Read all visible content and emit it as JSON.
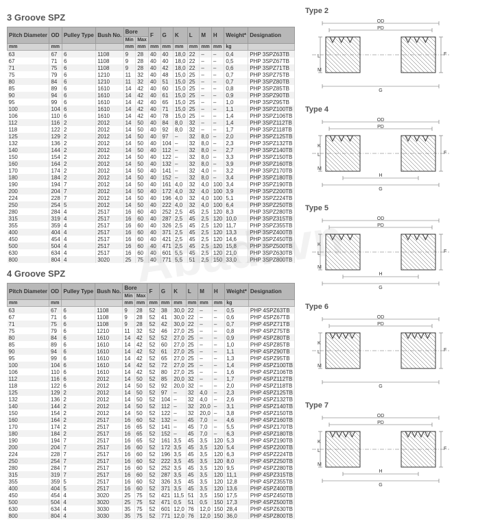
{
  "watermark": "Abadi.vn",
  "tables": [
    {
      "title": "3 Groove SPZ",
      "columns": [
        "Pitch Diameter",
        "OD",
        "Pulley Type",
        "Bush No.",
        "Bore Min",
        "Bore Max",
        "F",
        "G",
        "K",
        "L",
        "M",
        "H",
        "Weight*",
        "Designation"
      ],
      "units": [
        "mm",
        "mm",
        "",
        "",
        "mm",
        "mm",
        "mm",
        "mm",
        "mm",
        "mm",
        "mm",
        "mm",
        "kg",
        ""
      ],
      "rows": [
        [
          "63",
          "67",
          "6",
          "1108",
          "9",
          "28",
          "40",
          "40",
          "18,0",
          "22",
          "–",
          "–",
          "0,4",
          "PHP 3SPZ63TB"
        ],
        [
          "67",
          "71",
          "6",
          "1108",
          "9",
          "28",
          "40",
          "40",
          "18,0",
          "22",
          "–",
          "–",
          "0,5",
          "PHP 3SPZ67TB"
        ],
        [
          "71",
          "75",
          "6",
          "1108",
          "9",
          "28",
          "40",
          "42",
          "18,0",
          "22",
          "–",
          "–",
          "0,6",
          "PHP 3SPZ71TB"
        ],
        [
          "75",
          "79",
          "6",
          "1210",
          "11",
          "32",
          "40",
          "48",
          "15,0",
          "25",
          "–",
          "–",
          "0,7",
          "PHP 3SPZ75TB"
        ],
        [
          "80",
          "84",
          "6",
          "1210",
          "11",
          "32",
          "40",
          "51",
          "15,0",
          "25",
          "–",
          "–",
          "0,7",
          "PHP 3SPZ80TB"
        ],
        [
          "85",
          "89",
          "6",
          "1610",
          "14",
          "42",
          "40",
          "60",
          "15,0",
          "25",
          "–",
          "–",
          "0,8",
          "PHP 3SPZ85TB"
        ],
        [
          "90",
          "94",
          "6",
          "1610",
          "14",
          "42",
          "40",
          "61",
          "15,0",
          "25",
          "–",
          "–",
          "0,9",
          "PHP 3SPZ90TB"
        ],
        [
          "95",
          "99",
          "6",
          "1610",
          "14",
          "42",
          "40",
          "65",
          "15,0",
          "25",
          "–",
          "–",
          "1,0",
          "PHP 3SPZ95TB"
        ],
        [
          "100",
          "104",
          "6",
          "1610",
          "14",
          "42",
          "40",
          "71",
          "15,0",
          "25",
          "–",
          "–",
          "1,1",
          "PHP 3SPZ100TB"
        ],
        [
          "106",
          "110",
          "6",
          "1610",
          "14",
          "42",
          "40",
          "78",
          "15,0",
          "25",
          "–",
          "–",
          "1,4",
          "PHP 3SPZ106TB"
        ],
        [
          "112",
          "116",
          "2",
          "2012",
          "14",
          "50",
          "40",
          "84",
          "8,0",
          "32",
          "–",
          "–",
          "1,4",
          "PHP 3SPZ112TB"
        ],
        [
          "118",
          "122",
          "2",
          "2012",
          "14",
          "50",
          "40",
          "92",
          "8,0",
          "32",
          "–",
          "–",
          "1,7",
          "PHP 3SPZ118TB"
        ],
        [
          "125",
          "129",
          "2",
          "2012",
          "14",
          "50",
          "40",
          "97",
          "–",
          "32",
          "8,0",
          "–",
          "2,0",
          "PHP 3SPZ125TB"
        ],
        [
          "132",
          "136",
          "2",
          "2012",
          "14",
          "50",
          "40",
          "104",
          "–",
          "32",
          "8,0",
          "–",
          "2,3",
          "PHP 3SPZ132TB"
        ],
        [
          "140",
          "144",
          "2",
          "2012",
          "14",
          "50",
          "40",
          "112",
          "–",
          "32",
          "8,0",
          "–",
          "2,7",
          "PHP 3SPZ140TB"
        ],
        [
          "150",
          "154",
          "2",
          "2012",
          "14",
          "50",
          "40",
          "122",
          "–",
          "32",
          "8,0",
          "–",
          "3,3",
          "PHP 3SPZ150TB"
        ],
        [
          "160",
          "164",
          "2",
          "2012",
          "14",
          "50",
          "40",
          "132",
          "–",
          "32",
          "8,0",
          "–",
          "3,9",
          "PHP 3SPZ160TB"
        ],
        [
          "170",
          "174",
          "2",
          "2012",
          "14",
          "50",
          "40",
          "141",
          "–",
          "32",
          "4,0",
          "–",
          "3,2",
          "PHP 3SPZ170TB"
        ],
        [
          "180",
          "184",
          "2",
          "2012",
          "14",
          "50",
          "40",
          "152",
          "–",
          "32",
          "8,0",
          "–",
          "3,4",
          "PHP 3SPZ180TB"
        ],
        [
          "190",
          "194",
          "7",
          "2012",
          "14",
          "50",
          "40",
          "161",
          "4,0",
          "32",
          "4,0",
          "100",
          "3,4",
          "PHP 3SPZ190TB"
        ],
        [
          "200",
          "204",
          "7",
          "2012",
          "14",
          "50",
          "40",
          "172",
          "4,0",
          "32",
          "4,0",
          "100",
          "3,9",
          "PHP 3SPZ200TB"
        ],
        [
          "224",
          "228",
          "7",
          "2012",
          "14",
          "50",
          "40",
          "196",
          "4,0",
          "32",
          "4,0",
          "100",
          "5,1",
          "PHP 3SPZ224TB"
        ],
        [
          "250",
          "254",
          "5",
          "2012",
          "14",
          "50",
          "40",
          "222",
          "4,0",
          "32",
          "4,0",
          "100",
          "6,4",
          "PHP 3SPZ250TB"
        ],
        [
          "280",
          "284",
          "4",
          "2517",
          "16",
          "60",
          "40",
          "252",
          "2,5",
          "45",
          "2,5",
          "120",
          "8,3",
          "PHP 3SPZ280TB"
        ],
        [
          "315",
          "319",
          "4",
          "2517",
          "16",
          "60",
          "40",
          "287",
          "2,5",
          "45",
          "2,5",
          "120",
          "10,0",
          "PHP 3SPZ315TB"
        ],
        [
          "355",
          "359",
          "4",
          "2517",
          "16",
          "60",
          "40",
          "326",
          "2,5",
          "45",
          "2,5",
          "120",
          "11,7",
          "PHP 3SPZ355TB"
        ],
        [
          "400",
          "404",
          "4",
          "2517",
          "16",
          "60",
          "40",
          "371",
          "2,5",
          "45",
          "2,5",
          "120",
          "13,3",
          "PHP 3SPZ400TB"
        ],
        [
          "450",
          "454",
          "4",
          "2517",
          "16",
          "60",
          "40",
          "421",
          "2,5",
          "45",
          "2,5",
          "120",
          "14,6",
          "PHP 3SPZ450TB"
        ],
        [
          "500",
          "504",
          "4",
          "2517",
          "16",
          "60",
          "40",
          "471",
          "2,5",
          "45",
          "2,5",
          "120",
          "15,8",
          "PHP 3SPZ500TB"
        ],
        [
          "630",
          "634",
          "4",
          "2517",
          "16",
          "60",
          "40",
          "601",
          "5,5",
          "45",
          "2,5",
          "120",
          "21,0",
          "PHP 3SPZ630TB"
        ],
        [
          "800",
          "804",
          "4",
          "3020",
          "25",
          "75",
          "40",
          "771",
          "5,5",
          "51",
          "2,5",
          "150",
          "33,0",
          "PHP 3SPZ800TB"
        ]
      ]
    },
    {
      "title": "4 Groove SPZ",
      "columns": [
        "Pitch Diameter",
        "OD",
        "Pulley Type",
        "Bush No.",
        "Bore Min",
        "Bore Max",
        "F",
        "G",
        "K",
        "L",
        "M",
        "H",
        "Weight*",
        "Designation"
      ],
      "units": [
        "mm",
        "mm",
        "",
        "",
        "mm",
        "mm",
        "mm",
        "mm",
        "mm",
        "mm",
        "mm",
        "mm",
        "kg",
        ""
      ],
      "rows": [
        [
          "63",
          "67",
          "6",
          "1108",
          "9",
          "28",
          "52",
          "38",
          "30,0",
          "22",
          "–",
          "–",
          "0,5",
          "PHP 4SPZ63TB"
        ],
        [
          "67",
          "71",
          "6",
          "1108",
          "9",
          "28",
          "52",
          "41",
          "30,0",
          "22",
          "–",
          "–",
          "0,6",
          "PHP 4SPZ67TB"
        ],
        [
          "71",
          "75",
          "6",
          "1108",
          "9",
          "28",
          "52",
          "42",
          "30,0",
          "22",
          "–",
          "–",
          "0,7",
          "PHP 4SPZ71TB"
        ],
        [
          "75",
          "79",
          "6",
          "1210",
          "11",
          "32",
          "52",
          "46",
          "27,0",
          "25",
          "–",
          "–",
          "0,8",
          "PHP 4SPZ75TB"
        ],
        [
          "80",
          "84",
          "6",
          "1610",
          "14",
          "42",
          "52",
          "52",
          "27,0",
          "25",
          "–",
          "–",
          "0,9",
          "PHP 4SPZ80TB"
        ],
        [
          "85",
          "89",
          "6",
          "1610",
          "14",
          "42",
          "52",
          "60",
          "27,0",
          "25",
          "–",
          "–",
          "1,0",
          "PHP 4SPZ85TB"
        ],
        [
          "90",
          "94",
          "6",
          "1610",
          "14",
          "42",
          "52",
          "61",
          "27,0",
          "25",
          "–",
          "–",
          "1,1",
          "PHP 4SPZ90TB"
        ],
        [
          "95",
          "99",
          "6",
          "1610",
          "14",
          "42",
          "52",
          "65",
          "27,0",
          "25",
          "–",
          "–",
          "1,3",
          "PHP 4SPZ95TB"
        ],
        [
          "100",
          "104",
          "6",
          "1610",
          "14",
          "42",
          "52",
          "72",
          "27,0",
          "25",
          "–",
          "–",
          "1,4",
          "PHP 4SPZ100TB"
        ],
        [
          "106",
          "110",
          "6",
          "1610",
          "14",
          "42",
          "52",
          "80",
          "27,0",
          "25",
          "–",
          "–",
          "1,6",
          "PHP 4SPZ106TB"
        ],
        [
          "112",
          "116",
          "6",
          "2012",
          "14",
          "50",
          "52",
          "85",
          "20,0",
          "32",
          "–",
          "–",
          "1,7",
          "PHP 4SPZ112TB"
        ],
        [
          "118",
          "122",
          "6",
          "2012",
          "14",
          "50",
          "52",
          "92",
          "20,0",
          "32",
          "–",
          "–",
          "2,0",
          "PHP 4SPZ118TB"
        ],
        [
          "125",
          "129",
          "2",
          "2012",
          "14",
          "50",
          "52",
          "97",
          "–",
          "32",
          "4,0",
          "–",
          "2,3",
          "PHP 4SPZ125TB"
        ],
        [
          "132",
          "136",
          "2",
          "2012",
          "14",
          "50",
          "52",
          "104",
          "–",
          "32",
          "4,0",
          "–",
          "2,6",
          "PHP 4SPZ132TB"
        ],
        [
          "140",
          "144",
          "2",
          "2012",
          "14",
          "50",
          "52",
          "112",
          "–",
          "32",
          "20,0",
          "–",
          "3,1",
          "PHP 4SPZ140TB"
        ],
        [
          "150",
          "154",
          "2",
          "2012",
          "14",
          "50",
          "52",
          "122",
          "–",
          "32",
          "20,0",
          "–",
          "3,8",
          "PHP 4SPZ150TB"
        ],
        [
          "160",
          "164",
          "2",
          "2517",
          "16",
          "60",
          "52",
          "132",
          "–",
          "45",
          "7,0",
          "–",
          "4,6",
          "PHP 4SPZ160TB"
        ],
        [
          "170",
          "174",
          "2",
          "2517",
          "16",
          "65",
          "52",
          "141",
          "–",
          "45",
          "7,0",
          "–",
          "5,5",
          "PHP 4SPZ170TB"
        ],
        [
          "180",
          "184",
          "2",
          "2517",
          "16",
          "65",
          "52",
          "152",
          "–",
          "45",
          "7,0",
          "–",
          "6,3",
          "PHP 4SPZ180TB"
        ],
        [
          "190",
          "194",
          "7",
          "2517",
          "16",
          "65",
          "52",
          "161",
          "3,5",
          "45",
          "3,5",
          "120",
          "5,3",
          "PHP 4SPZ190TB"
        ],
        [
          "200",
          "204",
          "7",
          "2517",
          "16",
          "60",
          "52",
          "172",
          "3,5",
          "45",
          "3,5",
          "120",
          "5,4",
          "PHP 4SPZ200TB"
        ],
        [
          "224",
          "228",
          "7",
          "2517",
          "16",
          "60",
          "52",
          "196",
          "3,5",
          "45",
          "3,5",
          "120",
          "6,3",
          "PHP 4SPZ224TB"
        ],
        [
          "250",
          "254",
          "7",
          "2517",
          "16",
          "60",
          "52",
          "222",
          "3,5",
          "45",
          "3,5",
          "120",
          "8,0",
          "PHP 4SPZ250TB"
        ],
        [
          "280",
          "284",
          "7",
          "2517",
          "16",
          "60",
          "52",
          "252",
          "3,5",
          "45",
          "3,5",
          "120",
          "9,5",
          "PHP 4SPZ280TB"
        ],
        [
          "315",
          "319",
          "7",
          "2517",
          "16",
          "60",
          "52",
          "287",
          "3,5",
          "45",
          "3,5",
          "120",
          "11,1",
          "PHP 4SPZ315TB"
        ],
        [
          "355",
          "359",
          "5",
          "2517",
          "16",
          "60",
          "52",
          "326",
          "3,5",
          "45",
          "3,5",
          "120",
          "12,8",
          "PHP 4SPZ355TB"
        ],
        [
          "400",
          "404",
          "5",
          "2517",
          "16",
          "60",
          "52",
          "371",
          "3,5",
          "45",
          "3,5",
          "120",
          "13,6",
          "PHP 4SPZ400TB"
        ],
        [
          "450",
          "454",
          "4",
          "3020",
          "25",
          "75",
          "52",
          "421",
          "11,5",
          "51",
          "3,5",
          "150",
          "17,5",
          "PHP 4SPZ450TB"
        ],
        [
          "500",
          "504",
          "4",
          "3020",
          "25",
          "75",
          "52",
          "471",
          "0,5",
          "51",
          "0,5",
          "150",
          "17,3",
          "PHP 4SPZ500TB"
        ],
        [
          "630",
          "634",
          "4",
          "3030",
          "35",
          "75",
          "52",
          "601",
          "12,0",
          "76",
          "12,0",
          "150",
          "28,4",
          "PHP 4SPZ630TB"
        ],
        [
          "800",
          "804",
          "4",
          "3030",
          "35",
          "75",
          "52",
          "771",
          "12,0",
          "76",
          "12,0",
          "150",
          "36,0",
          "PHP 4SPZ800TB"
        ]
      ]
    }
  ],
  "diagrams": [
    {
      "title": "Type 2",
      "labels": [
        "OD",
        "PD",
        "L",
        "M",
        "G",
        "F"
      ]
    },
    {
      "title": "Type 4",
      "labels": [
        "OD",
        "PD",
        "K",
        "L",
        "M",
        "H",
        "G",
        "F"
      ]
    },
    {
      "title": "Type 5",
      "labels": [
        "OD",
        "PD",
        "K",
        "L",
        "M",
        "H",
        "G",
        "F"
      ]
    },
    {
      "title": "Type 6",
      "labels": [
        "OD",
        "PD",
        "K",
        "L",
        "G",
        "F"
      ]
    },
    {
      "title": "Type 7",
      "labels": [
        "OD",
        "PD",
        "K",
        "L",
        "M",
        "H",
        "G",
        "F"
      ]
    }
  ],
  "colors": {
    "header_bg": "#b8b8b8",
    "row_odd": "#f2f2f2",
    "row_even": "#ffffff",
    "text": "#333333",
    "line": "#666666"
  }
}
